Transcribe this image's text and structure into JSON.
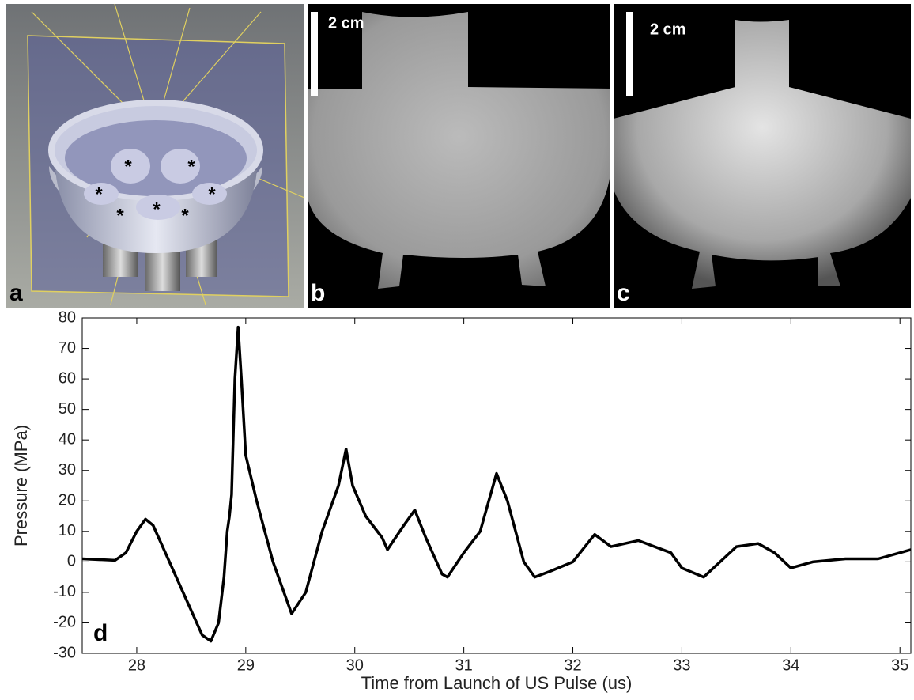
{
  "panels": [
    {
      "label": "a",
      "markers": [
        "*",
        "*",
        "*",
        "*",
        "*",
        "*",
        "*"
      ]
    },
    {
      "label": "b",
      "scale_bar": "2 cm"
    },
    {
      "label": "c",
      "scale_bar": "2 cm"
    }
  ],
  "chart_data": {
    "type": "line",
    "label": "d",
    "xlabel": "Time from Launch of US Pulse (us)",
    "ylabel": "Pressure (MPa)",
    "color": "#000000",
    "xlim": [
      27.5,
      35.1
    ],
    "ylim": [
      -30,
      80
    ],
    "xticks": [
      28,
      29,
      30,
      31,
      32,
      33,
      34,
      35
    ],
    "yticks": [
      -30,
      -20,
      -10,
      0,
      10,
      20,
      30,
      40,
      50,
      60,
      70,
      80
    ],
    "x": [
      27.5,
      27.8,
      27.9,
      28.0,
      28.08,
      28.15,
      28.3,
      28.45,
      28.6,
      28.68,
      28.75,
      28.8,
      28.83,
      28.85,
      28.87,
      28.9,
      28.93,
      28.96,
      29.0,
      29.1,
      29.25,
      29.42,
      29.55,
      29.7,
      29.85,
      29.92,
      29.98,
      30.1,
      30.25,
      30.3,
      30.45,
      30.55,
      30.65,
      30.8,
      30.85,
      31.0,
      31.15,
      31.3,
      31.4,
      31.55,
      31.65,
      31.8,
      32.0,
      32.2,
      32.35,
      32.6,
      32.75,
      32.9,
      33.0,
      33.2,
      33.35,
      33.5,
      33.7,
      33.85,
      34.0,
      34.2,
      34.5,
      34.8,
      35.1
    ],
    "values": [
      1,
      0.5,
      3,
      10,
      14,
      12,
      0,
      -12,
      -24,
      -26,
      -20,
      -5,
      10,
      15,
      22,
      60,
      77,
      60,
      35,
      20,
      0,
      -17,
      -10,
      10,
      25,
      37,
      25,
      15,
      8,
      4,
      12,
      17,
      8,
      -4,
      -5,
      3,
      10,
      29,
      20,
      0,
      -5,
      -3,
      0,
      9,
      5,
      7,
      5,
      3,
      -2,
      -5,
      0,
      5,
      6,
      3,
      -2,
      0,
      1,
      1,
      4
    ]
  }
}
